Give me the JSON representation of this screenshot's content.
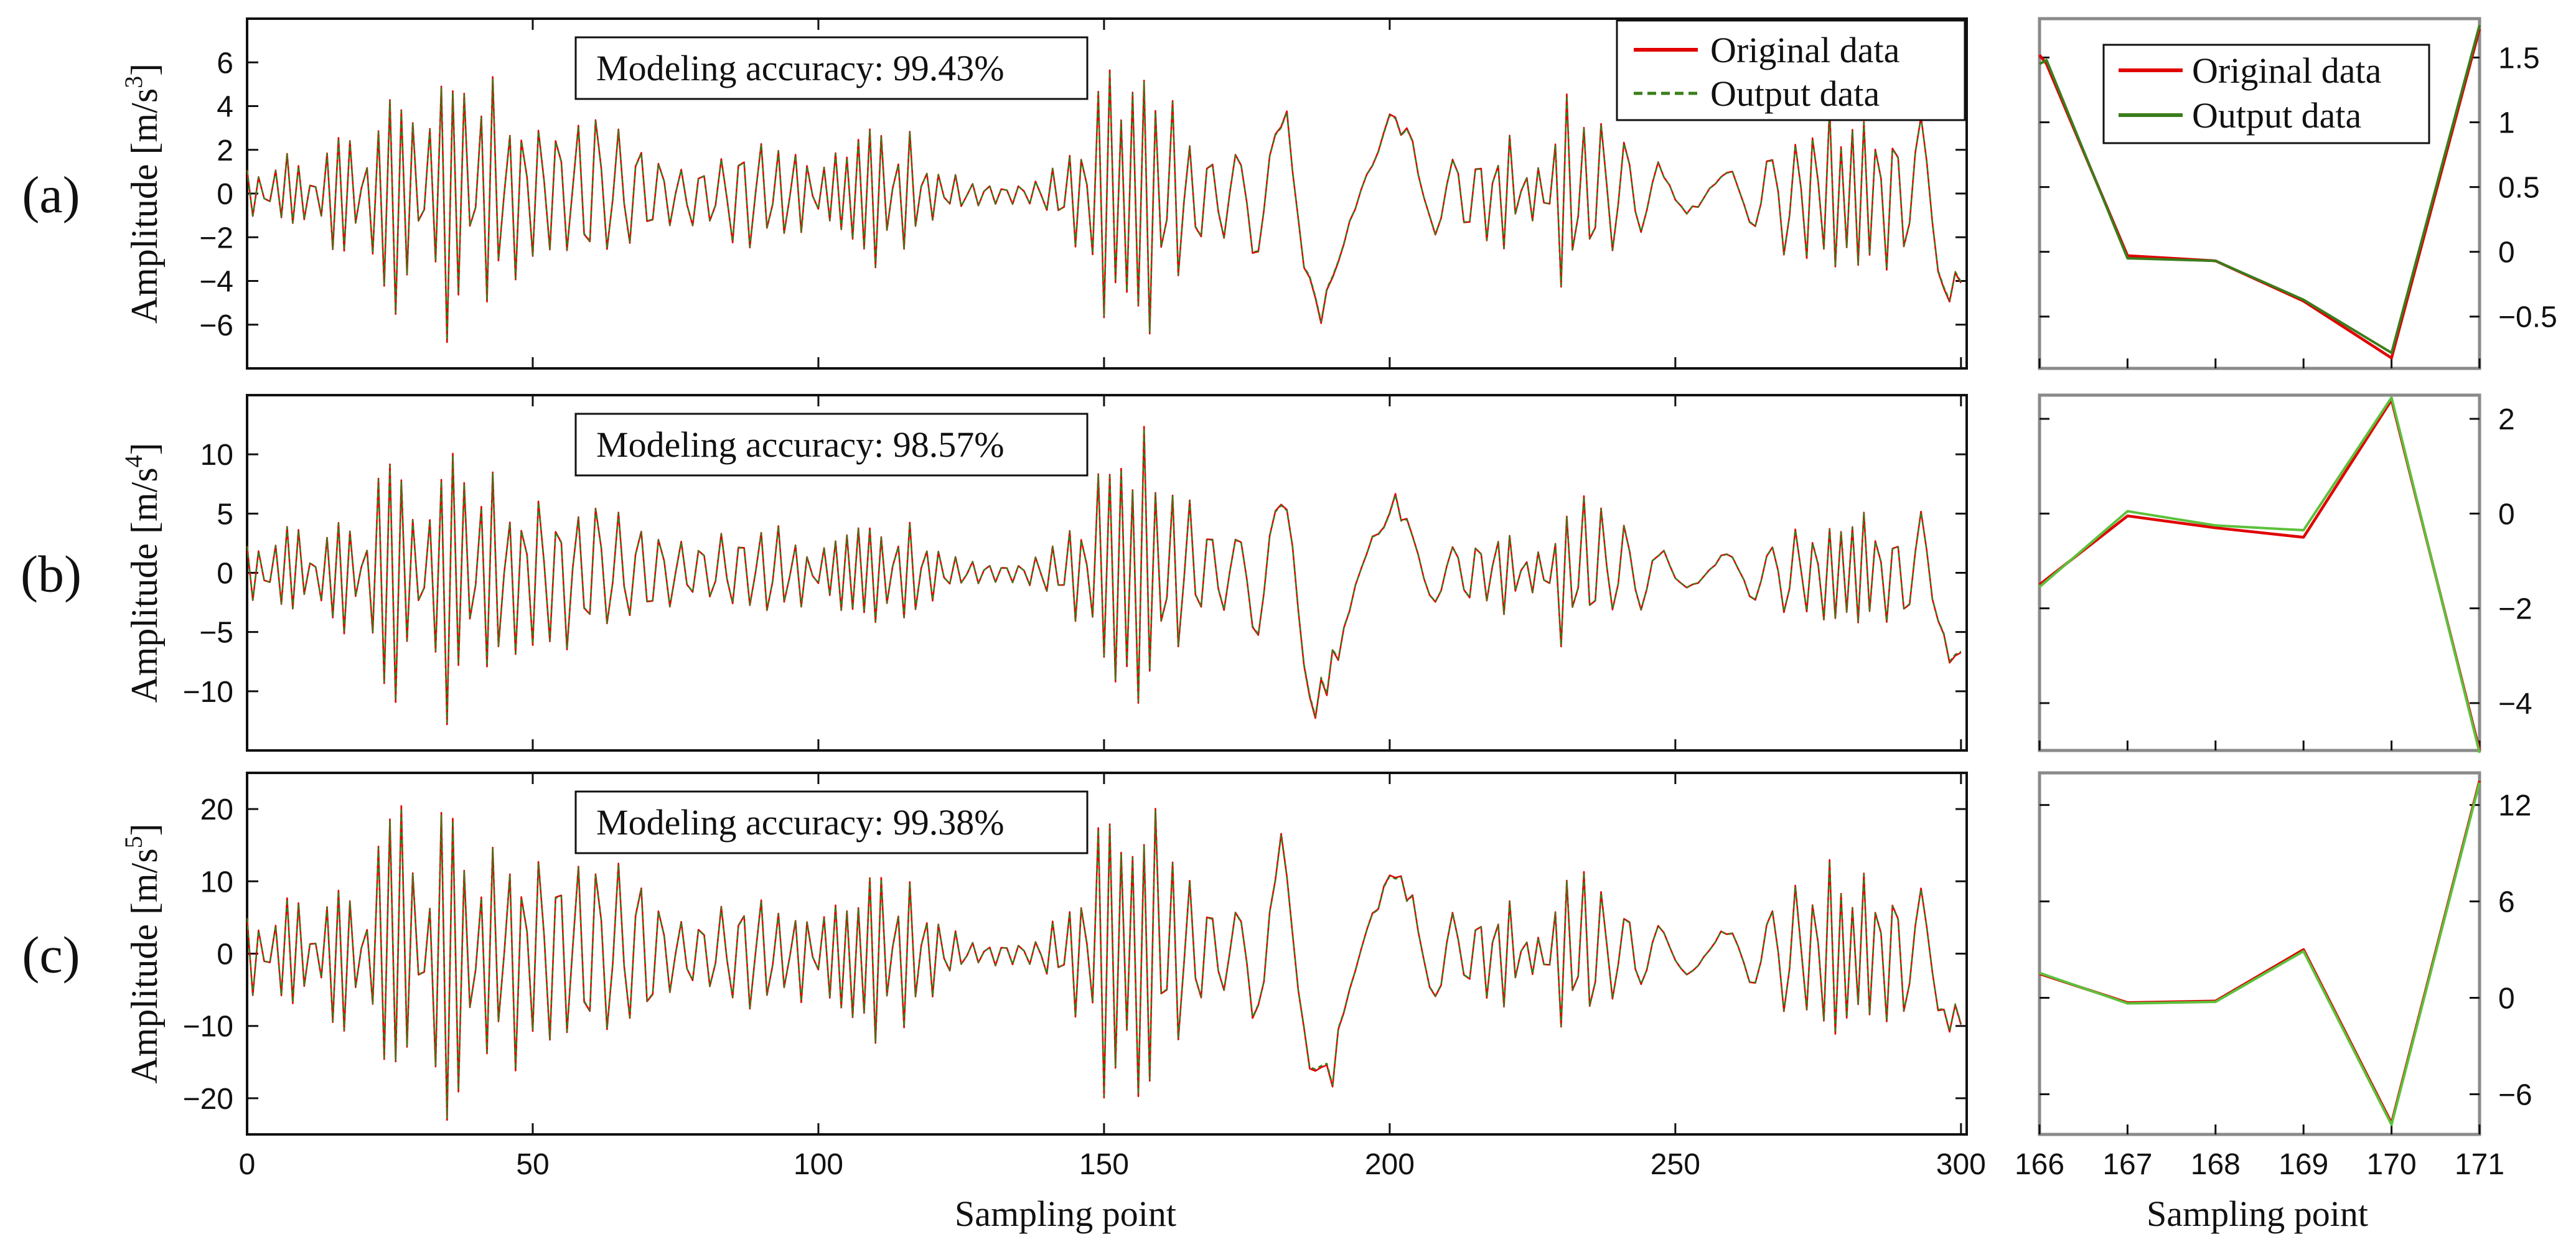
{
  "colors": {
    "original": "#e00000",
    "output_dashed": "#3a7d1c",
    "output_zoom": "#5cc13c",
    "axis": "#111111",
    "zoom_frame": "#8a8a8a"
  },
  "legend": {
    "original_label": "Original data",
    "output_label": "Output data"
  },
  "xlabel": "Sampling point",
  "chart_data": [
    {
      "id": "a",
      "type": "line",
      "panel_label": "(a)",
      "ylabel_prefix": "Amplitude [m/s",
      "ylabel_exp": "3",
      "ylabel_suffix": "]",
      "accuracy": "Modeling accuracy: 99.43%",
      "xlim": [
        0,
        301
      ],
      "ylim": [
        -8,
        8
      ],
      "xticks": [
        0,
        50,
        100,
        150,
        200,
        250,
        300
      ],
      "yticks": [
        -6,
        -4,
        -2,
        0,
        2,
        4,
        6
      ],
      "peak": 6.8,
      "bursts": [
        [
          5,
          12,
          0.15
        ],
        [
          32,
          15,
          0.95
        ],
        [
          60,
          14,
          0.45
        ],
        [
          90,
          10,
          0.3
        ],
        [
          112,
          9,
          0.42
        ],
        [
          155,
          10,
          0.95
        ],
        [
          190,
          14,
          0.9
        ],
        [
          230,
          14,
          0.55
        ],
        [
          280,
          16,
          0.5
        ],
        [
          300,
          6,
          0.55
        ]
      ],
      "seed": 11,
      "zoom": {
        "xlim": [
          166,
          171
        ],
        "ylim": [
          -0.9,
          1.8
        ],
        "xticks": [
          166,
          167,
          168,
          169,
          170,
          171
        ],
        "yticks": [
          -0.5,
          0,
          0.5,
          1,
          1.5
        ],
        "original": [
          [
            166,
            1.52
          ],
          [
            166.08,
            1.45
          ],
          [
            167,
            -0.03
          ],
          [
            168,
            -0.07
          ],
          [
            169,
            -0.38
          ],
          [
            170,
            -0.82
          ],
          [
            171,
            1.72
          ]
        ],
        "output": [
          [
            166,
            1.45
          ],
          [
            166.08,
            1.48
          ],
          [
            167,
            -0.05
          ],
          [
            168,
            -0.07
          ],
          [
            169,
            -0.37
          ],
          [
            170,
            -0.78
          ],
          [
            171,
            1.75
          ]
        ],
        "legend_box": true
      }
    },
    {
      "id": "b",
      "type": "line",
      "panel_label": "(b)",
      "ylabel_prefix": "Amplitude [m/s",
      "ylabel_exp": "4",
      "ylabel_suffix": "]",
      "accuracy": "Modeling accuracy: 98.57%",
      "xlim": [
        0,
        301
      ],
      "ylim": [
        -15,
        15
      ],
      "xticks": [
        0,
        50,
        100,
        150,
        200,
        250,
        300
      ],
      "yticks": [
        -10,
        -5,
        0,
        5,
        10
      ],
      "peak": 12.8,
      "bursts": [
        [
          5,
          10,
          0.2
        ],
        [
          32,
          15,
          0.95
        ],
        [
          60,
          14,
          0.45
        ],
        [
          90,
          10,
          0.25
        ],
        [
          112,
          9,
          0.35
        ],
        [
          155,
          10,
          0.95
        ],
        [
          190,
          14,
          0.9
        ],
        [
          230,
          14,
          0.45
        ],
        [
          280,
          16,
          0.35
        ],
        [
          300,
          6,
          0.5
        ]
      ],
      "seed": 23,
      "zoom": {
        "xlim": [
          166,
          171
        ],
        "ylim": [
          -5,
          2.5
        ],
        "xticks": [
          166,
          167,
          168,
          169,
          170,
          171
        ],
        "yticks": [
          -4,
          -2,
          0,
          2
        ],
        "original": [
          [
            166,
            -1.5
          ],
          [
            167,
            -0.05
          ],
          [
            168,
            -0.3
          ],
          [
            169,
            -0.5
          ],
          [
            170,
            2.4
          ],
          [
            171,
            -5.0
          ]
        ],
        "output": [
          [
            166,
            -1.55
          ],
          [
            167,
            0.05
          ],
          [
            168,
            -0.25
          ],
          [
            169,
            -0.35
          ],
          [
            170,
            2.45
          ],
          [
            171,
            -5.05
          ]
        ],
        "legend_box": false
      }
    },
    {
      "id": "c",
      "type": "line",
      "panel_label": "(c)",
      "ylabel_prefix": "Amplitude [m/s",
      "ylabel_exp": "5",
      "ylabel_suffix": "]",
      "accuracy": "Modeling accuracy: 99.38%",
      "xlim": [
        0,
        301
      ],
      "ylim": [
        -25,
        25
      ],
      "xticks": [
        0,
        50,
        100,
        150,
        200,
        250,
        300
      ],
      "yticks": [
        -20,
        -10,
        0,
        10,
        20
      ],
      "peak": 23,
      "bursts": [
        [
          5,
          10,
          0.25
        ],
        [
          32,
          15,
          0.95
        ],
        [
          60,
          14,
          0.55
        ],
        [
          90,
          10,
          0.3
        ],
        [
          112,
          9,
          0.45
        ],
        [
          155,
          10,
          0.95
        ],
        [
          190,
          14,
          0.9
        ],
        [
          230,
          14,
          0.45
        ],
        [
          280,
          16,
          0.45
        ],
        [
          300,
          6,
          0.3
        ]
      ],
      "seed": 37,
      "zoom": {
        "xlim": [
          166,
          171
        ],
        "ylim": [
          -8.5,
          14
        ],
        "xticks": [
          166,
          167,
          168,
          169,
          170,
          171
        ],
        "yticks": [
          -6,
          0,
          6,
          12
        ],
        "original": [
          [
            166,
            1.5
          ],
          [
            167,
            -0.3
          ],
          [
            168,
            -0.2
          ],
          [
            169,
            3.0
          ],
          [
            170,
            -7.8
          ],
          [
            171,
            13.5
          ]
        ],
        "output": [
          [
            166,
            1.55
          ],
          [
            167,
            -0.35
          ],
          [
            168,
            -0.25
          ],
          [
            169,
            2.9
          ],
          [
            170,
            -7.9
          ],
          [
            171,
            13.4
          ]
        ],
        "legend_box": false
      }
    }
  ]
}
